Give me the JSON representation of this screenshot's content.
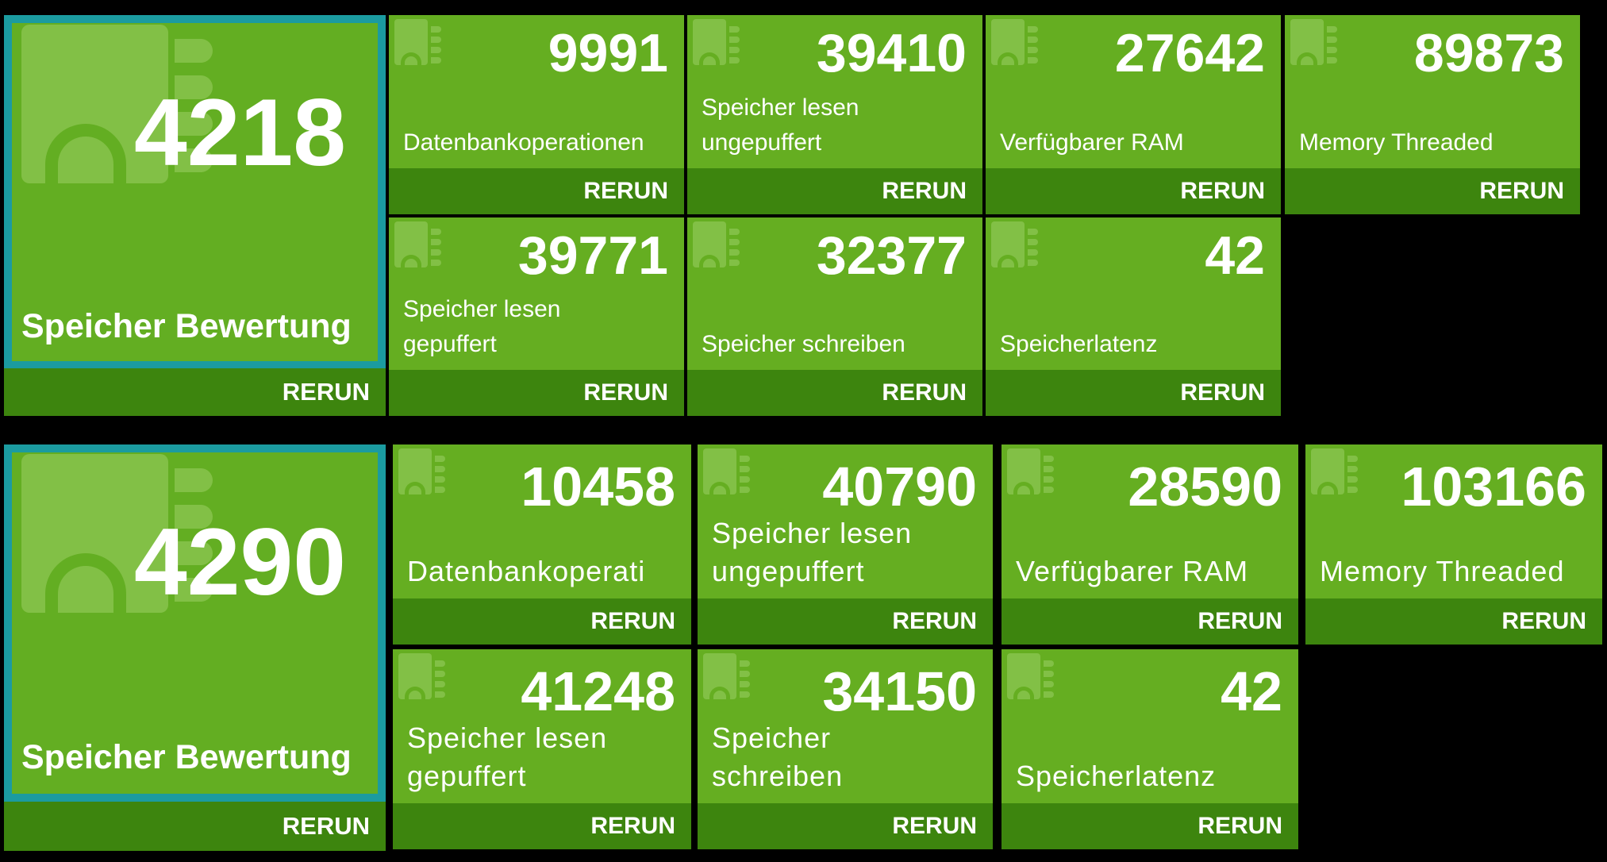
{
  "rerun_label": "RERUN",
  "section1": {
    "main": {
      "score": "4218",
      "label": "Speicher Bewertung"
    },
    "tiles": [
      {
        "score": "9991",
        "label_lines": [
          "Datenbankoperationen"
        ]
      },
      {
        "score": "39410",
        "label_lines": [
          "Speicher lesen",
          "ungepuffert"
        ]
      },
      {
        "score": "27642",
        "label_lines": [
          "Verfügbarer RAM"
        ]
      },
      {
        "score": "89873",
        "label_lines": [
          "Memory Threaded"
        ]
      },
      {
        "score": "39771",
        "label_lines": [
          "Speicher lesen",
          "gepuffert"
        ]
      },
      {
        "score": "32377",
        "label_lines": [
          "Speicher schreiben"
        ]
      },
      {
        "score": "42",
        "label_lines": [
          "Speicherlatenz"
        ]
      }
    ]
  },
  "section2": {
    "main": {
      "score": "4290",
      "label": "Speicher Bewertung"
    },
    "tiles": [
      {
        "score": "10458",
        "label_lines": [
          "Datenbankoperati"
        ]
      },
      {
        "score": "40790",
        "label_lines": [
          "Speicher lesen",
          "ungepuffert"
        ]
      },
      {
        "score": "28590",
        "label_lines": [
          "Verfügbarer RAM"
        ]
      },
      {
        "score": "103166",
        "label_lines": [
          "Memory Threaded"
        ]
      },
      {
        "score": "41248",
        "label_lines": [
          "Speicher lesen",
          "gepuffert"
        ]
      },
      {
        "score": "34150",
        "label_lines": [
          "Speicher",
          "schreiben"
        ]
      },
      {
        "score": "42",
        "label_lines": [
          "Speicherlatenz"
        ]
      }
    ]
  },
  "colors": {
    "tile_green": "#65ae21",
    "rerun_bar": "#3d850e",
    "main_border": "#1b9ba0",
    "chip_light": "#82c046",
    "background": "#000000"
  }
}
